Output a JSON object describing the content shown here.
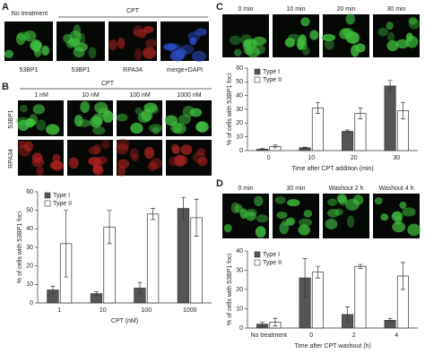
{
  "panel_a": {
    "letter": "A",
    "treatment_labels": [
      "No treatment",
      "CPT"
    ],
    "channel_labels": [
      "53BP1",
      "53BP1",
      "RPA34",
      "merge+DAPI"
    ]
  },
  "panel_b": {
    "letter": "B",
    "treatment_label": "CPT",
    "dose_labels": [
      "1 nM",
      "10 nM",
      "100 nM",
      "1000 nM"
    ],
    "row_labels": [
      "53BP1",
      "RPA34"
    ]
  },
  "panel_c": {
    "letter": "C",
    "time_labels": [
      "0 min",
      "10 min",
      "20 min",
      "30 min"
    ]
  },
  "panel_d": {
    "letter": "D",
    "time_labels": [
      "0 min",
      "30 min",
      "Washout 2 h",
      "Washout 4 h"
    ]
  },
  "chart_data": [
    {
      "type": "bar",
      "categories": [
        "1",
        "10",
        "100",
        "1000"
      ],
      "xlabel": "CPT (nM)",
      "ylabel": "% of cells with 53BP1 foci",
      "ylim": [
        0,
        60
      ],
      "yticks": [
        0,
        10,
        20,
        30,
        40,
        50,
        60
      ],
      "legend": "top-left",
      "series": [
        {
          "name": "Type I",
          "color": "#555555",
          "values": [
            7,
            5,
            8,
            51
          ],
          "errors": [
            2,
            1,
            3,
            6
          ]
        },
        {
          "name": "Type II",
          "color": "#ffffff",
          "values": [
            32,
            41,
            48,
            46
          ],
          "errors": [
            18,
            9,
            3,
            10
          ]
        }
      ]
    },
    {
      "type": "bar",
      "categories": [
        "0",
        "10",
        "20",
        "30"
      ],
      "xlabel": "Time after CPT addition (min)",
      "ylabel": "% of cells with 53BP1 foci",
      "ylim": [
        0,
        60
      ],
      "yticks": [
        0,
        10,
        20,
        30,
        40,
        50,
        60
      ],
      "legend": "top-left",
      "series": [
        {
          "name": "Type I",
          "color": "#555555",
          "values": [
            1,
            2,
            14,
            47
          ],
          "errors": [
            0.5,
            0.5,
            1,
            4
          ]
        },
        {
          "name": "Type II",
          "color": "#ffffff",
          "values": [
            3,
            31,
            27,
            29
          ],
          "errors": [
            1,
            4,
            4,
            6
          ]
        }
      ]
    },
    {
      "type": "bar",
      "categories": [
        "No treatment",
        "0",
        "2",
        "4"
      ],
      "xlabel": "Time after CPT washout (h)",
      "ylabel": "% of cells with 53BP1 foci",
      "ylim": [
        0,
        40
      ],
      "yticks": [
        0,
        10,
        20,
        30,
        40
      ],
      "legend": "top-left",
      "series": [
        {
          "name": "Type I",
          "color": "#555555",
          "values": [
            2,
            26,
            7,
            4
          ],
          "errors": [
            1,
            10,
            4,
            1
          ]
        },
        {
          "name": "Type II",
          "color": "#ffffff",
          "values": [
            3,
            29,
            32,
            27
          ],
          "errors": [
            2,
            3,
            1,
            7
          ]
        }
      ]
    }
  ]
}
